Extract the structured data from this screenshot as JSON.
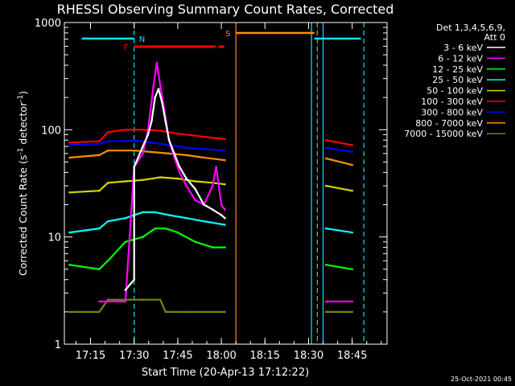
{
  "chart_data": {
    "type": "line",
    "title": "RHESSI Observing Summary Count Rates, Corrected",
    "xlabel": "Start Time (20-Apr-13 17:12:22)",
    "ylabel": "Corrected Count Rate (s",
    "ylabel_sup1": "-1",
    "ylabel_mid": " detector",
    "ylabel_sup2": "-1",
    "ylabel_end": ")",
    "yscale": "log",
    "ylim": [
      1,
      1000
    ],
    "xlim_minutes": [
      17.1,
      18.95
    ],
    "x_ticks": [
      "17:15",
      "17:30",
      "17:45",
      "18:00",
      "18:15",
      "18:30",
      "18:45"
    ],
    "y_ticks": [
      "1",
      "10",
      "100",
      "1000"
    ],
    "legend_header": [
      "Det 1,3,4,5,6,9,",
      "Att 0"
    ],
    "footer": "25-Oct-2021 00:45",
    "flags": {
      "N": {
        "label": "N",
        "color": "#00e5ff",
        "spans": [
          [
            "17:12",
            "17:30"
          ],
          [
            "18:32",
            "18:48"
          ]
        ]
      },
      "S": {
        "label": "S",
        "color": "#ff8c00",
        "spans": [
          [
            "18:05",
            "18:32"
          ]
        ]
      },
      "F": {
        "label": "F",
        "color": "#ff0000",
        "spans": [
          [
            "17:30",
            "17:58"
          ],
          [
            "17:59",
            "18:01"
          ]
        ]
      }
    },
    "vertical_markers": [
      {
        "time": "17:30",
        "color": "#00e5ff",
        "style": "dashed"
      },
      {
        "time": "18:05",
        "color": "#ff8c00",
        "style": "solid"
      },
      {
        "time": "18:31",
        "color": "#00e5ff",
        "style": "solid"
      },
      {
        "time": "18:33",
        "color": "#ff8c00",
        "style": "dashed"
      },
      {
        "time": "18:35",
        "color": "#00e5ff",
        "style": "solid"
      },
      {
        "time": "18:49",
        "color": "#00e5ff",
        "style": "dashed"
      }
    ],
    "series": [
      {
        "name": "3 - 6 keV",
        "color": "#ffffff",
        "points": [
          [
            17.45,
            3.2
          ],
          [
            17.5,
            4
          ],
          [
            17.5,
            45
          ],
          [
            17.55,
            70
          ],
          [
            17.58,
            90
          ],
          [
            17.6,
            120
          ],
          [
            17.62,
            200
          ],
          [
            17.64,
            240
          ],
          [
            17.66,
            180
          ],
          [
            17.68,
            120
          ],
          [
            17.7,
            80
          ],
          [
            17.73,
            60
          ],
          [
            17.76,
            45
          ],
          [
            17.8,
            35
          ],
          [
            17.85,
            28
          ],
          [
            17.9,
            20
          ],
          [
            17.95,
            18
          ],
          [
            18.0,
            16
          ],
          [
            18.02,
            15
          ]
        ]
      },
      {
        "name": "6 - 12 keV",
        "color": "#ff00ff",
        "points": [
          [
            17.3,
            2.5
          ],
          [
            17.45,
            2.5
          ],
          [
            17.48,
            14
          ],
          [
            17.5,
            45
          ],
          [
            17.55,
            60
          ],
          [
            17.58,
            100
          ],
          [
            17.61,
            250
          ],
          [
            17.63,
            420
          ],
          [
            17.65,
            260
          ],
          [
            17.68,
            130
          ],
          [
            17.7,
            80
          ],
          [
            17.73,
            55
          ],
          [
            17.76,
            40
          ],
          [
            17.8,
            30
          ],
          [
            17.85,
            22
          ],
          [
            17.9,
            20
          ],
          [
            17.95,
            30
          ],
          [
            17.97,
            45
          ],
          [
            18.0,
            20
          ],
          [
            18.02,
            18
          ],
          [
            18.6,
            2.5
          ],
          [
            18.75,
            2.5
          ]
        ]
      },
      {
        "name": "12 - 25 keV",
        "color": "#00ff00",
        "points": [
          [
            17.13,
            5.5
          ],
          [
            17.3,
            5
          ],
          [
            17.35,
            6
          ],
          [
            17.45,
            9
          ],
          [
            17.55,
            10
          ],
          [
            17.62,
            12
          ],
          [
            17.68,
            12
          ],
          [
            17.75,
            11
          ],
          [
            17.85,
            9
          ],
          [
            17.95,
            8
          ],
          [
            18.02,
            8
          ],
          [
            18.6,
            5.5
          ],
          [
            18.75,
            5
          ]
        ]
      },
      {
        "name": "25 - 50 keV",
        "color": "#00ffff",
        "points": [
          [
            17.13,
            11
          ],
          [
            17.3,
            12
          ],
          [
            17.35,
            14
          ],
          [
            17.45,
            15
          ],
          [
            17.55,
            17
          ],
          [
            17.62,
            17
          ],
          [
            17.7,
            16
          ],
          [
            17.8,
            15
          ],
          [
            17.9,
            14
          ],
          [
            18.02,
            13
          ],
          [
            18.6,
            12
          ],
          [
            18.75,
            11
          ]
        ]
      },
      {
        "name": "50 - 100 keV",
        "color": "#d4d400",
        "points": [
          [
            17.13,
            26
          ],
          [
            17.3,
            27
          ],
          [
            17.35,
            32
          ],
          [
            17.45,
            33
          ],
          [
            17.55,
            34
          ],
          [
            17.65,
            36
          ],
          [
            17.75,
            35
          ],
          [
            17.85,
            33
          ],
          [
            17.95,
            32
          ],
          [
            18.02,
            31
          ],
          [
            18.6,
            30
          ],
          [
            18.75,
            27
          ]
        ]
      },
      {
        "name": "100 - 300 keV",
        "color": "#ff0000",
        "points": [
          [
            17.13,
            76
          ],
          [
            17.3,
            78
          ],
          [
            17.35,
            95
          ],
          [
            17.45,
            100
          ],
          [
            17.55,
            100
          ],
          [
            17.65,
            98
          ],
          [
            17.75,
            92
          ],
          [
            17.85,
            88
          ],
          [
            17.95,
            84
          ],
          [
            18.02,
            82
          ],
          [
            18.6,
            80
          ],
          [
            18.75,
            72
          ]
        ]
      },
      {
        "name": "300 - 800 keV",
        "color": "#0000ff",
        "points": [
          [
            17.13,
            72
          ],
          [
            17.3,
            74
          ],
          [
            17.35,
            78
          ],
          [
            17.5,
            79
          ],
          [
            17.6,
            76
          ],
          [
            17.7,
            72
          ],
          [
            17.8,
            68
          ],
          [
            17.9,
            66
          ],
          [
            18.02,
            64
          ],
          [
            18.6,
            68
          ],
          [
            18.75,
            62
          ]
        ]
      },
      {
        "name": "800 - 7000 keV",
        "color": "#ff8c00",
        "points": [
          [
            17.13,
            55
          ],
          [
            17.3,
            58
          ],
          [
            17.35,
            64
          ],
          [
            17.5,
            64
          ],
          [
            17.6,
            62
          ],
          [
            17.7,
            60
          ],
          [
            17.8,
            58
          ],
          [
            17.9,
            55
          ],
          [
            18.02,
            52
          ],
          [
            18.6,
            54
          ],
          [
            18.75,
            47
          ]
        ]
      },
      {
        "name": "7000 - 15000 keV",
        "color": "#808000",
        "points": [
          [
            17.13,
            2
          ],
          [
            17.3,
            2
          ],
          [
            17.35,
            2.6
          ],
          [
            17.55,
            2.6
          ],
          [
            17.65,
            2.6
          ],
          [
            17.68,
            2
          ],
          [
            17.8,
            2
          ],
          [
            18.02,
            2
          ],
          [
            18.6,
            2
          ],
          [
            18.75,
            2
          ]
        ]
      }
    ]
  }
}
